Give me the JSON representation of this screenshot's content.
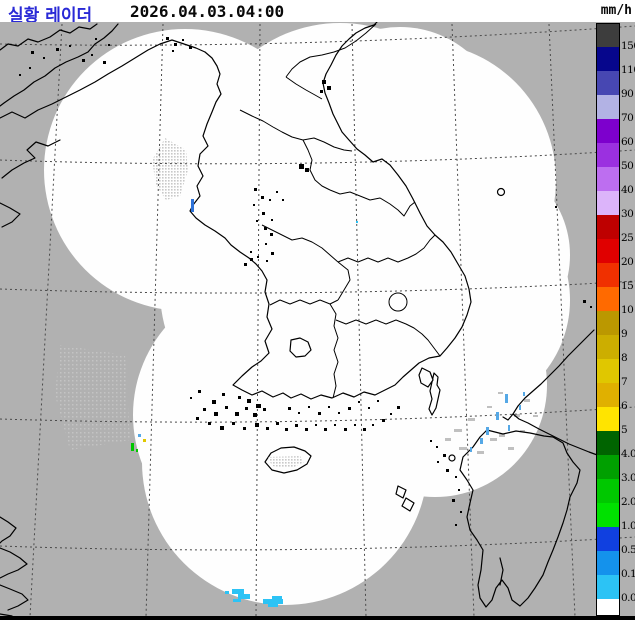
{
  "header": {
    "title": "실황 레이더",
    "timestamp": "2026.04.03.04:00",
    "unit_label": "mm/h"
  },
  "legend": {
    "unit": "mm/h",
    "ticks": [
      "150",
      "110",
      "90",
      "70",
      "60",
      "50",
      "40",
      "30",
      "25",
      "20",
      "15",
      "10",
      "9",
      "8",
      "7",
      "6",
      "5",
      "4.0",
      "3.0",
      "2.0",
      "1.0",
      "0.5",
      "0.1",
      "0.0"
    ],
    "segment_colors": [
      "#3d3d3d",
      "#06068c",
      "#4747b2",
      "#b2b2e4",
      "#7d00cd",
      "#9b30e0",
      "#bd6ef0",
      "#dcb4fa",
      "#be0000",
      "#e00000",
      "#f03000",
      "#ff6a00",
      "#bb9800",
      "#ccae00",
      "#e0c700",
      "#e0b000",
      "#ffe400",
      "#006400",
      "#00a000",
      "#00c800",
      "#00e100",
      "#1040e0",
      "#1492ec",
      "#2cc3f5",
      "#ffffff"
    ]
  },
  "map": {
    "background_color": "#b1b1b1",
    "coverage_color": "#fefefe",
    "coast_color": "#000000",
    "grid_color": "#4a4a4a",
    "echo_cyan": "#2cc3f5",
    "echo_blue": "#2d72d8",
    "echo_lightblue": "#55a8e6",
    "echo_green": "#00c800",
    "echo_yellow": "#e0c700",
    "clutter_color": "#c8c8c8"
  }
}
